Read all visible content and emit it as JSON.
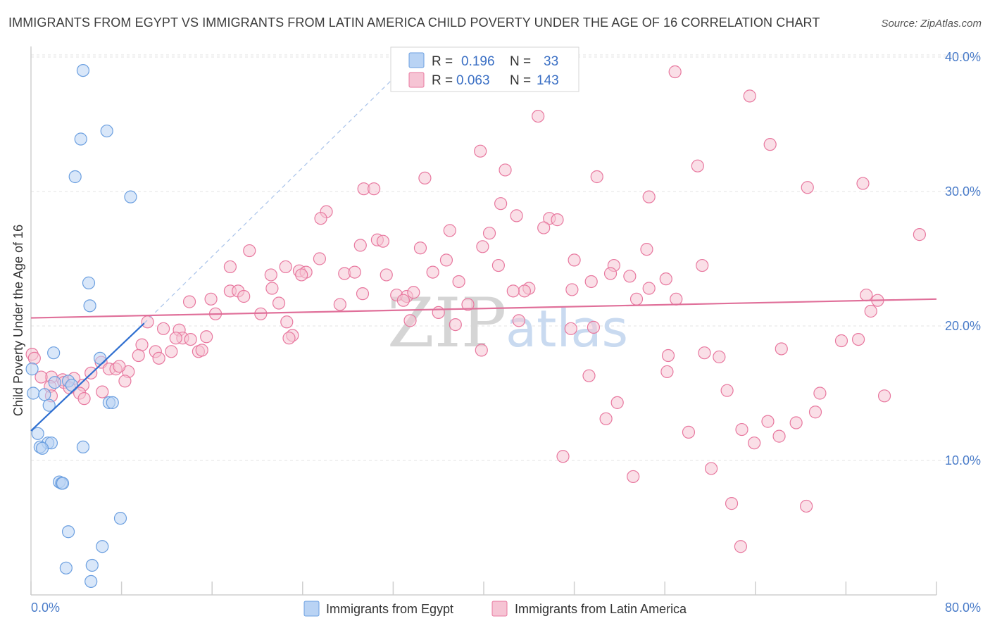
{
  "title": "IMMIGRANTS FROM EGYPT VS IMMIGRANTS FROM LATIN AMERICA CHILD POVERTY UNDER THE AGE OF 16 CORRELATION CHART",
  "source": "Source: ZipAtlas.com",
  "watermark": {
    "zip": "ZIP",
    "atlas": "atlas"
  },
  "colors": {
    "egypt": "#6b9fe0",
    "egypt_fill": "#b9d3f4",
    "latin": "#e8789f",
    "latin_fill": "#f6c4d4",
    "egypt_line": "#2f6fd0",
    "latin_line": "#e0709a",
    "axis_text": "#4a7cc9"
  },
  "legend_box": {
    "r_label": "R =",
    "n_label": "N =",
    "rows": [
      {
        "r": "0.196",
        "n": "33"
      },
      {
        "r": "0.063",
        "n": "143"
      }
    ]
  },
  "chart_data": {
    "type": "scatter",
    "title": "IMMIGRANTS FROM EGYPT VS IMMIGRANTS FROM LATIN AMERICA CHILD POVERTY UNDER THE AGE OF 16 CORRELATION CHART",
    "xlabel": "",
    "ylabel": "Child Poverty Under the Age of 16",
    "xlim": [
      0,
      80
    ],
    "ylim": [
      0,
      42
    ],
    "x_tick_labels": [
      "0.0%",
      "80.0%"
    ],
    "y_ticks": [
      10,
      20,
      30,
      40
    ],
    "y_tick_labels": [
      "10.0%",
      "20.0%",
      "30.0%",
      "40.0%"
    ],
    "grid": true,
    "legend_position": "bottom",
    "series": [
      {
        "name": "Immigrants from Egypt",
        "r": 0.196,
        "n": 33,
        "trend": {
          "x0": 0,
          "y0": 12.2,
          "x1": 10,
          "y1": 20.2,
          "dashed_to_x": 32,
          "dashed_to_y": 38.4
        },
        "points": [
          [
            4.6,
            39.0
          ],
          [
            4.4,
            33.9
          ],
          [
            6.7,
            34.5
          ],
          [
            3.9,
            31.1
          ],
          [
            8.8,
            29.6
          ],
          [
            5.1,
            23.2
          ],
          [
            5.2,
            21.5
          ],
          [
            2.0,
            18.0
          ],
          [
            6.1,
            17.6
          ],
          [
            0.1,
            16.8
          ],
          [
            2.1,
            15.8
          ],
          [
            3.3,
            15.9
          ],
          [
            3.6,
            15.6
          ],
          [
            0.2,
            15.0
          ],
          [
            1.2,
            14.9
          ],
          [
            1.6,
            14.1
          ],
          [
            6.9,
            14.3
          ],
          [
            7.2,
            14.3
          ],
          [
            0.6,
            12.0
          ],
          [
            1.5,
            11.3
          ],
          [
            1.8,
            11.3
          ],
          [
            0.8,
            11.0
          ],
          [
            1.0,
            10.9
          ],
          [
            4.6,
            11.0
          ],
          [
            2.5,
            8.4
          ],
          [
            2.7,
            8.3
          ],
          [
            2.8,
            8.3
          ],
          [
            7.9,
            5.7
          ],
          [
            3.3,
            4.7
          ],
          [
            6.3,
            3.6
          ],
          [
            3.1,
            2.0
          ],
          [
            5.4,
            2.2
          ],
          [
            5.3,
            1.0
          ]
        ]
      },
      {
        "name": "Immigrants from Latin America",
        "r": 0.063,
        "n": 143,
        "trend": {
          "x0": 0,
          "y0": 20.6,
          "x1": 80,
          "y1": 22.0
        },
        "points": [
          [
            56.9,
            38.9
          ],
          [
            63.5,
            37.1
          ],
          [
            44.8,
            35.6
          ],
          [
            65.3,
            33.5
          ],
          [
            39.7,
            33.0
          ],
          [
            58.9,
            31.9
          ],
          [
            41.9,
            31.6
          ],
          [
            50.0,
            31.1
          ],
          [
            34.8,
            31.0
          ],
          [
            29.4,
            30.2
          ],
          [
            30.3,
            30.2
          ],
          [
            68.6,
            30.3
          ],
          [
            73.5,
            30.6
          ],
          [
            54.6,
            29.6
          ],
          [
            41.5,
            29.1
          ],
          [
            26.1,
            28.5
          ],
          [
            25.6,
            28.0
          ],
          [
            42.9,
            28.2
          ],
          [
            45.8,
            28.0
          ],
          [
            46.5,
            27.9
          ],
          [
            37.0,
            27.1
          ],
          [
            45.3,
            27.3
          ],
          [
            40.5,
            26.9
          ],
          [
            78.5,
            26.8
          ],
          [
            30.6,
            26.4
          ],
          [
            31.1,
            26.3
          ],
          [
            29.1,
            26.0
          ],
          [
            34.4,
            25.8
          ],
          [
            39.9,
            25.9
          ],
          [
            54.4,
            25.7
          ],
          [
            19.3,
            25.6
          ],
          [
            25.5,
            25.0
          ],
          [
            36.7,
            24.9
          ],
          [
            48.0,
            24.9
          ],
          [
            17.6,
            24.4
          ],
          [
            22.5,
            24.4
          ],
          [
            41.3,
            24.5
          ],
          [
            51.5,
            24.5
          ],
          [
            59.3,
            24.5
          ],
          [
            23.7,
            24.1
          ],
          [
            24.3,
            24.0
          ],
          [
            27.7,
            23.9
          ],
          [
            28.6,
            24.0
          ],
          [
            35.5,
            24.0
          ],
          [
            21.2,
            23.8
          ],
          [
            31.4,
            23.8
          ],
          [
            51.2,
            23.9
          ],
          [
            52.9,
            23.7
          ],
          [
            23.9,
            23.8
          ],
          [
            56.1,
            23.5
          ],
          [
            49.5,
            23.3
          ],
          [
            37.8,
            23.3
          ],
          [
            21.3,
            22.8
          ],
          [
            17.6,
            22.6
          ],
          [
            18.3,
            22.6
          ],
          [
            44.0,
            22.8
          ],
          [
            43.6,
            22.6
          ],
          [
            42.6,
            22.6
          ],
          [
            47.8,
            22.7
          ],
          [
            54.6,
            22.8
          ],
          [
            57.0,
            22.0
          ],
          [
            29.3,
            22.4
          ],
          [
            32.3,
            22.3
          ],
          [
            33.2,
            22.2
          ],
          [
            33.8,
            22.5
          ],
          [
            15.9,
            22.0
          ],
          [
            18.8,
            22.2
          ],
          [
            53.5,
            22.0
          ],
          [
            73.8,
            22.3
          ],
          [
            74.8,
            21.9
          ],
          [
            32.9,
            21.9
          ],
          [
            14.0,
            21.8
          ],
          [
            21.9,
            21.7
          ],
          [
            27.3,
            21.6
          ],
          [
            38.6,
            21.6
          ],
          [
            16.3,
            20.9
          ],
          [
            20.3,
            20.9
          ],
          [
            36.0,
            21.0
          ],
          [
            74.2,
            21.1
          ],
          [
            43.1,
            20.4
          ],
          [
            33.5,
            20.4
          ],
          [
            22.6,
            20.3
          ],
          [
            37.5,
            20.1
          ],
          [
            10.3,
            20.3
          ],
          [
            11.7,
            19.8
          ],
          [
            13.1,
            19.7
          ],
          [
            47.7,
            19.8
          ],
          [
            49.7,
            19.9
          ],
          [
            23.1,
            19.3
          ],
          [
            15.5,
            19.2
          ],
          [
            13.4,
            19.1
          ],
          [
            22.8,
            19.1
          ],
          [
            12.8,
            19.1
          ],
          [
            14.1,
            19.0
          ],
          [
            9.8,
            18.6
          ],
          [
            11.0,
            18.1
          ],
          [
            12.4,
            18.1
          ],
          [
            14.8,
            18.1
          ],
          [
            15.1,
            18.2
          ],
          [
            39.8,
            18.2
          ],
          [
            66.3,
            18.3
          ],
          [
            71.6,
            18.9
          ],
          [
            73.1,
            19.0
          ],
          [
            59.5,
            18.0
          ],
          [
            56.3,
            17.8
          ],
          [
            60.8,
            17.7
          ],
          [
            9.5,
            17.8
          ],
          [
            11.3,
            17.6
          ],
          [
            0.1,
            17.9
          ],
          [
            0.3,
            17.6
          ],
          [
            6.2,
            17.3
          ],
          [
            5.3,
            16.5
          ],
          [
            6.9,
            16.8
          ],
          [
            7.5,
            16.8
          ],
          [
            8.6,
            16.6
          ],
          [
            7.8,
            17.0
          ],
          [
            1.8,
            16.2
          ],
          [
            2.8,
            16.0
          ],
          [
            3.8,
            16.1
          ],
          [
            0.9,
            16.2
          ],
          [
            56.2,
            16.6
          ],
          [
            49.3,
            16.3
          ],
          [
            8.3,
            15.9
          ],
          [
            4.6,
            15.6
          ],
          [
            2.9,
            15.8
          ],
          [
            1.7,
            15.5
          ],
          [
            3.4,
            15.4
          ],
          [
            4.3,
            15.0
          ],
          [
            6.3,
            15.1
          ],
          [
            61.5,
            15.2
          ],
          [
            69.7,
            15.0
          ],
          [
            1.8,
            14.8
          ],
          [
            4.7,
            14.6
          ],
          [
            75.4,
            14.8
          ],
          [
            51.8,
            14.3
          ],
          [
            69.3,
            13.6
          ],
          [
            50.8,
            13.1
          ],
          [
            65.1,
            12.9
          ],
          [
            67.6,
            12.8
          ],
          [
            58.1,
            12.1
          ],
          [
            62.8,
            12.3
          ],
          [
            66.1,
            11.8
          ],
          [
            63.9,
            11.3
          ],
          [
            47.0,
            10.3
          ],
          [
            60.1,
            9.4
          ],
          [
            53.2,
            8.8
          ],
          [
            61.9,
            6.8
          ],
          [
            68.5,
            6.6
          ],
          [
            62.7,
            3.6
          ]
        ]
      }
    ]
  },
  "bottom_legend": [
    {
      "label": "Immigrants from Egypt"
    },
    {
      "label": "Immigrants from Latin America"
    }
  ]
}
